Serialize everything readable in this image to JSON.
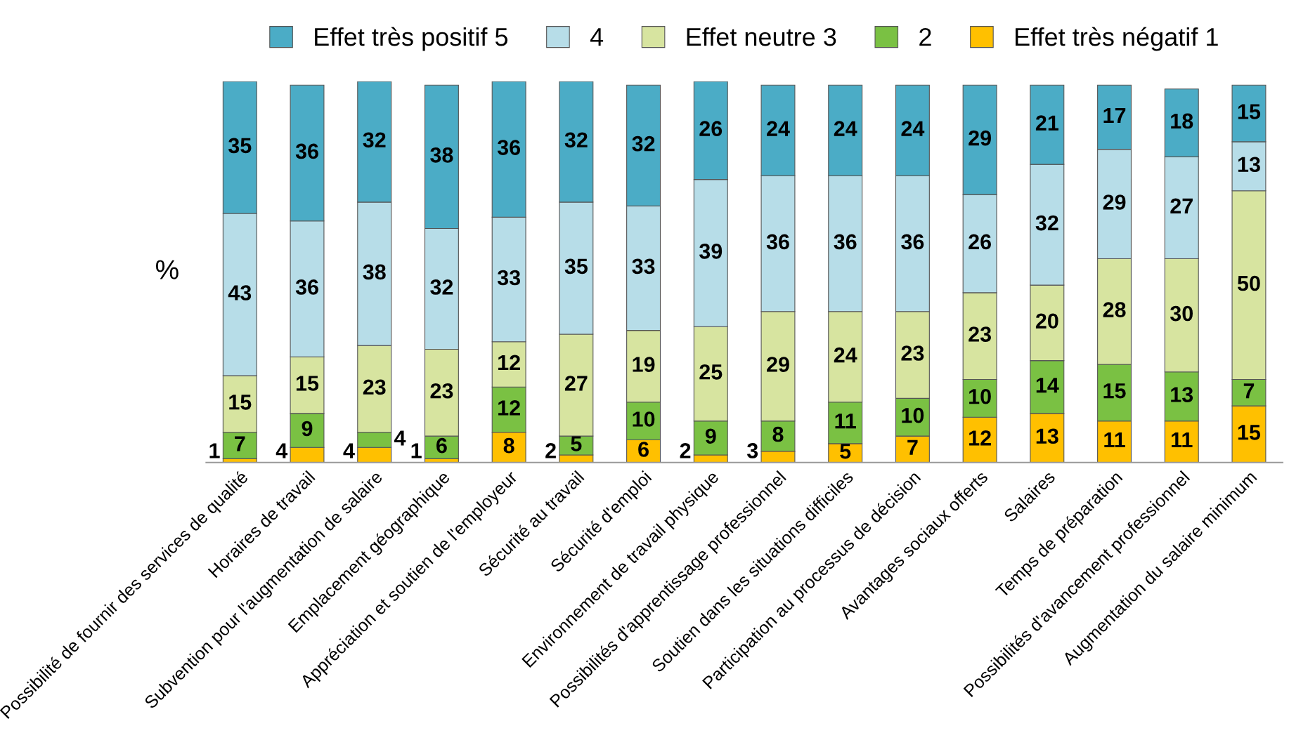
{
  "chart_data": {
    "type": "bar",
    "stacked": true,
    "ylabel": "%",
    "data_labels": true,
    "legend": "top",
    "grid": false,
    "tick_labels": "x",
    "categories": [
      "Possibilité de fournir des services de qualité",
      "Horaires de travail",
      "Subvention pour l'augmentation de salaire",
      "Emplacement géographique",
      "Appréciation et soutien de l'employeur",
      "Sécurité au travail",
      "Sécurité d'emploi",
      "Environnement de travail physique",
      "Possibilités d'apprentissage professionnel",
      "Soutien dans les situations difficiles",
      "Participation au processus de décision",
      "Avantages sociaux offerts",
      "Salaires",
      "Temps de préparation",
      "Possibilités d'avancement professionnel",
      "Augmentation du salaire minimum"
    ],
    "series": [
      {
        "name": "Effet très négatif 1",
        "color": "#ffc000",
        "values": [
          1,
          4,
          4,
          1,
          8,
          2,
          6,
          2,
          3,
          5,
          7,
          12,
          13,
          11,
          11,
          15
        ]
      },
      {
        "name": "2",
        "color": "#7ac143",
        "values": [
          7,
          9,
          4,
          6,
          12,
          5,
          10,
          9,
          8,
          11,
          10,
          10,
          14,
          15,
          13,
          7
        ]
      },
      {
        "name": "Effet neutre 3",
        "color": "#d7e4a0",
        "values": [
          15,
          15,
          23,
          23,
          12,
          27,
          19,
          25,
          29,
          24,
          23,
          23,
          20,
          28,
          30,
          50
        ]
      },
      {
        "name": "4",
        "color": "#b7dde8",
        "values": [
          43,
          36,
          38,
          32,
          33,
          35,
          33,
          39,
          36,
          36,
          36,
          26,
          32,
          29,
          27,
          13
        ]
      },
      {
        "name": "Effet très positif 5",
        "color": "#4bacc6",
        "values": [
          35,
          36,
          32,
          38,
          36,
          32,
          32,
          26,
          24,
          24,
          24,
          29,
          21,
          17,
          18,
          15
        ]
      }
    ]
  }
}
